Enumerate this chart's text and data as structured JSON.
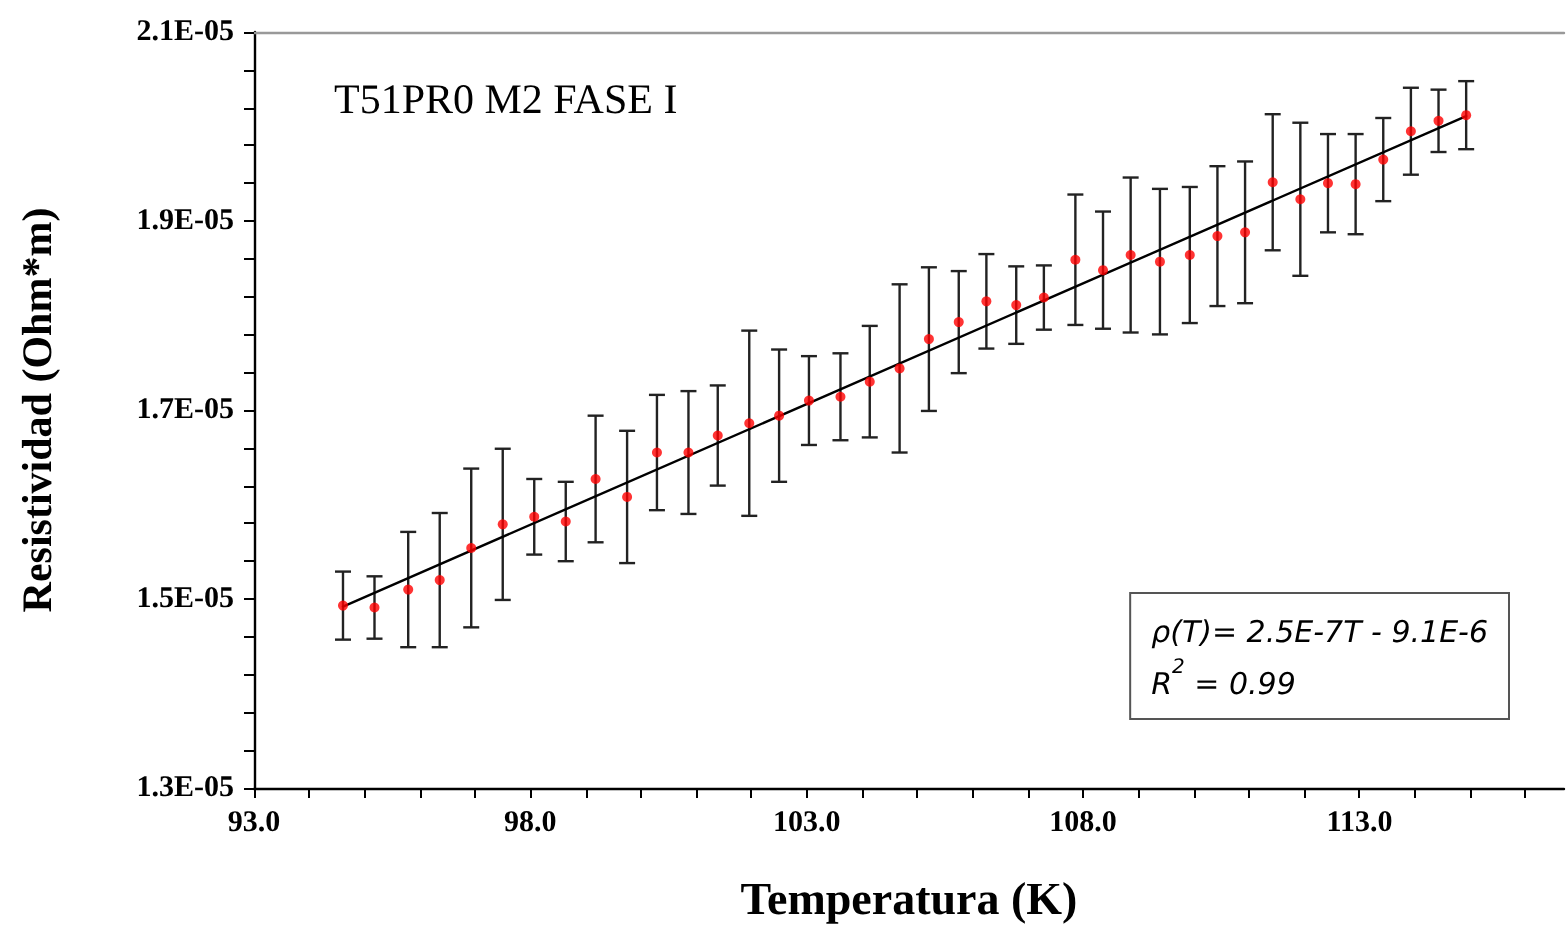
{
  "chart_data": {
    "type": "scatter",
    "title": "T51PR0 M2 FASE I",
    "xlabel": "Temperatura (K)",
    "ylabel": "Resistividad (Ohm*m)",
    "annotations": [
      "ρ(T)= 2.5E-7T - 9.1E-6",
      "R$^{2}$ = 0.99"
    ],
    "marker": "circle",
    "grid": false,
    "xlim": [
      93,
      116.7
    ],
    "xticks": [
      {
        "value": 93,
        "label": "93.0"
      },
      {
        "value": 94,
        "label": null
      },
      {
        "value": 95,
        "label": null
      },
      {
        "value": 96,
        "label": null
      },
      {
        "value": 97,
        "label": null
      },
      {
        "value": 98,
        "label": "98.0"
      },
      {
        "value": 99,
        "label": null
      },
      {
        "value": 100,
        "label": null
      },
      {
        "value": 101,
        "label": null
      },
      {
        "value": 102,
        "label": null
      },
      {
        "value": 103,
        "label": "103.0"
      },
      {
        "value": 104,
        "label": null
      },
      {
        "value": 105,
        "label": null
      },
      {
        "value": 106,
        "label": null
      },
      {
        "value": 107,
        "label": null
      },
      {
        "value": 108,
        "label": "108.0"
      },
      {
        "value": 109,
        "label": null
      },
      {
        "value": 110,
        "label": null
      },
      {
        "value": 111,
        "label": null
      },
      {
        "value": 112,
        "label": null
      },
      {
        "value": 113,
        "label": "113.0"
      },
      {
        "value": 114,
        "label": null
      },
      {
        "value": 115,
        "label": null
      },
      {
        "value": 116,
        "label": null
      }
    ],
    "ylim": [
      1.3e-05,
      2.1e-05
    ],
    "yticks": [
      {
        "value": 1.3e-05,
        "label": "1.3E-05"
      },
      {
        "value": 1.34e-05,
        "label": null
      },
      {
        "value": 1.38e-05,
        "label": null
      },
      {
        "value": 1.42e-05,
        "label": null
      },
      {
        "value": 1.46e-05,
        "label": null
      },
      {
        "value": 1.5e-05,
        "label": "1.5E-05"
      },
      {
        "value": 1.54e-05,
        "label": null
      },
      {
        "value": 1.58e-05,
        "label": null
      },
      {
        "value": 1.62e-05,
        "label": null
      },
      {
        "value": 1.66e-05,
        "label": null
      },
      {
        "value": 1.7e-05,
        "label": "1.7E-05"
      },
      {
        "value": 1.74e-05,
        "label": null
      },
      {
        "value": 1.78e-05,
        "label": null
      },
      {
        "value": 1.82e-05,
        "label": null
      },
      {
        "value": 1.86e-05,
        "label": null
      },
      {
        "value": 1.9e-05,
        "label": "1.9E-05"
      },
      {
        "value": 1.94e-05,
        "label": null
      },
      {
        "value": 1.98e-05,
        "label": null
      },
      {
        "value": 2.02e-05,
        "label": null
      },
      {
        "value": 2.06e-05,
        "label": null
      },
      {
        "value": 2.1e-05,
        "label": "2.1E-05"
      }
    ],
    "series": [
      {
        "color": "#ff0000",
        "x": [
          94.61,
          95.18,
          95.79,
          96.36,
          96.93,
          97.5,
          98.07,
          98.64,
          99.18,
          99.75,
          100.29,
          100.86,
          101.39,
          101.96,
          102.5,
          103.04,
          103.61,
          104.14,
          104.68,
          105.21,
          105.75,
          106.25,
          106.79,
          107.29,
          107.86,
          108.36,
          108.86,
          109.39,
          109.93,
          110.43,
          110.93,
          111.43,
          111.93,
          112.43,
          112.93,
          113.43,
          113.93,
          114.43,
          114.93
        ],
        "values": [
          1.493e-05,
          1.491e-05,
          1.51e-05,
          1.52e-05,
          1.554e-05,
          1.579e-05,
          1.587e-05,
          1.582e-05,
          1.627e-05,
          1.608e-05,
          1.655e-05,
          1.655e-05,
          1.673e-05,
          1.686e-05,
          1.694e-05,
          1.71e-05,
          1.714e-05,
          1.73e-05,
          1.744e-05,
          1.775e-05,
          1.793e-05,
          1.815e-05,
          1.811e-05,
          1.819e-05,
          1.859e-05,
          1.848e-05,
          1.864e-05,
          1.857e-05,
          1.864e-05,
          1.884e-05,
          1.888e-05,
          1.941e-05,
          1.923e-05,
          1.94e-05,
          1.939e-05,
          1.965e-05,
          1.995e-05,
          2.006e-05,
          2.012e-05
        ],
        "errors": [
          3.6e-07,
          3.3e-07,
          6.1e-07,
          7.1e-07,
          8.4e-07,
          8e-07,
          4e-07,
          4.2e-07,
          6.7e-07,
          7e-07,
          6.1e-07,
          6.5e-07,
          5.3e-07,
          9.8e-07,
          7e-07,
          4.7e-07,
          4.6e-07,
          5.9e-07,
          8.9e-07,
          7.6e-07,
          5.4e-07,
          5e-07,
          4.1e-07,
          3.4e-07,
          6.9e-07,
          6.2e-07,
          8.2e-07,
          7.7e-07,
          7.2e-07,
          7.4e-07,
          7.5e-07,
          7.2e-07,
          8.1e-07,
          5.2e-07,
          5.3e-07,
          4.4e-07,
          4.6e-07,
          3.3e-07,
          3.6e-07
        ]
      },
      {
        "type": "line",
        "color": "#000000",
        "marker": "none",
        "line_style": "solid",
        "x": [
          94.61,
          114.93
        ],
        "values": [
          1.492e-05,
          2.011e-05
        ]
      }
    ]
  }
}
